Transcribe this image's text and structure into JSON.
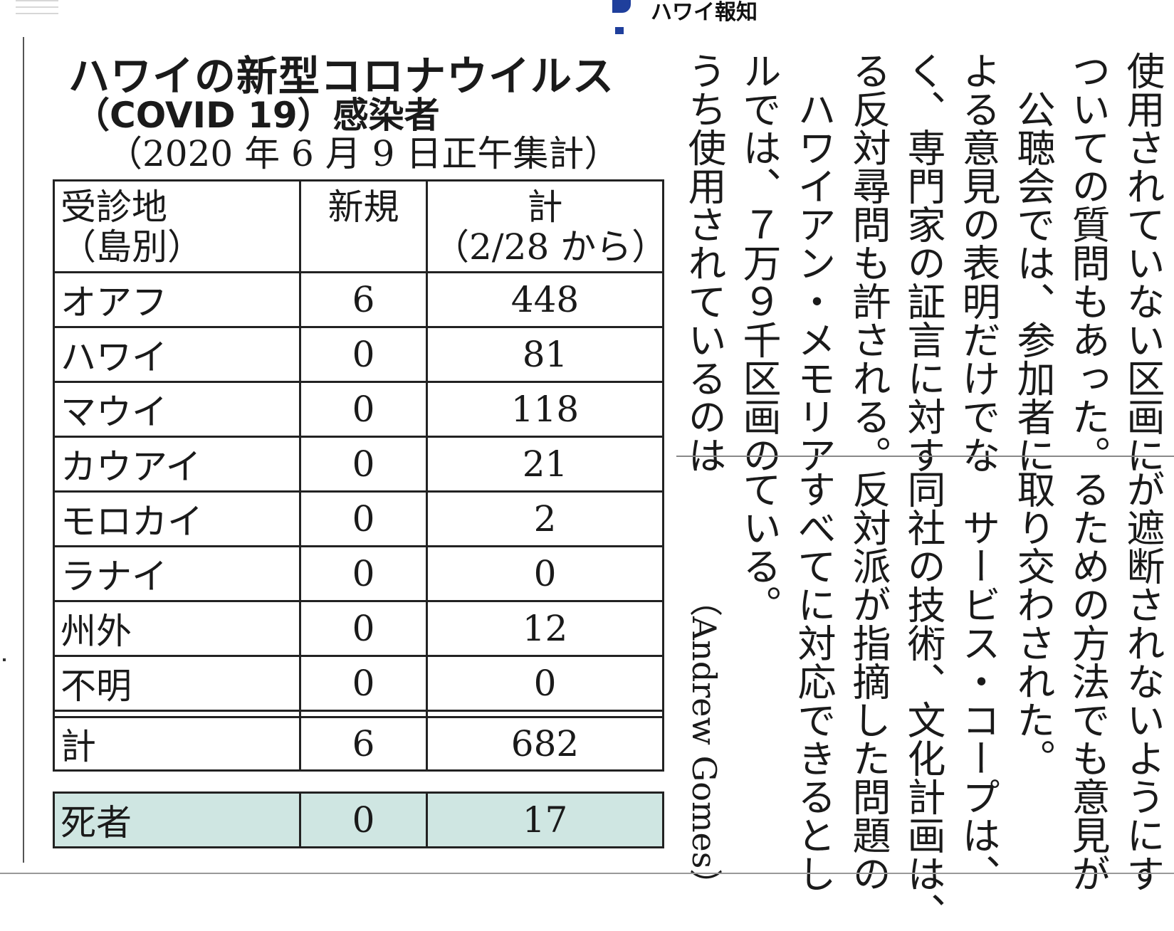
{
  "header": {
    "logo_text": "ハワイ報知"
  },
  "table": {
    "title_line1": "ハワイの新型コロナウイルス",
    "title_line2": "（COVID 19）感染者",
    "subtitle": "（2020 年 6 月 9 日正午集計）",
    "headers": {
      "island_line1": "受診地",
      "island_line2": "（島別）",
      "new": "新規",
      "total_line1": "計",
      "total_line2": "（2/28 から）"
    },
    "rows": [
      {
        "island": "オアフ",
        "new": "6",
        "total": "448"
      },
      {
        "island": "ハワイ",
        "new": "0",
        "total": "81"
      },
      {
        "island": "マウイ",
        "new": "0",
        "total": "118"
      },
      {
        "island": "カウアイ",
        "new": "0",
        "total": "21"
      },
      {
        "island": "モロカイ",
        "new": "0",
        "total": "2"
      },
      {
        "island": "ラナイ",
        "new": "0",
        "total": "0"
      },
      {
        "island": "州外",
        "new": "0",
        "total": "12"
      },
      {
        "island": "不明",
        "new": "0",
        "total": "0"
      }
    ],
    "total_row": {
      "label": "計",
      "new": "6",
      "total": "682"
    },
    "deaths_row": {
      "label": "死者",
      "new": "0",
      "total": "17"
    },
    "deaths_color": "#cfe6e2"
  },
  "article": {
    "upper_columns": [
      "使用されていない区画に",
      "ついての質問もあった。",
      "　公聴会では、参加者に",
      "よる意見の表明だけでな",
      "く、専門家の証言に対す",
      "る反対尋問も許される。",
      "　ハワイアン・メモリア",
      "ルでは、７万９千区画の",
      "うち使用されているのは"
    ],
    "lower_columns": [
      "が遮断されないようにす",
      "るための方法でも意見が",
      "取り交わされた。",
      "　サービス・コープは、",
      "同社の技術、文化計画は、",
      "反対派が指摘した問題の",
      "すべてに対応できるとし",
      "ている。"
    ],
    "credit": "（Andrew Gomes）"
  }
}
